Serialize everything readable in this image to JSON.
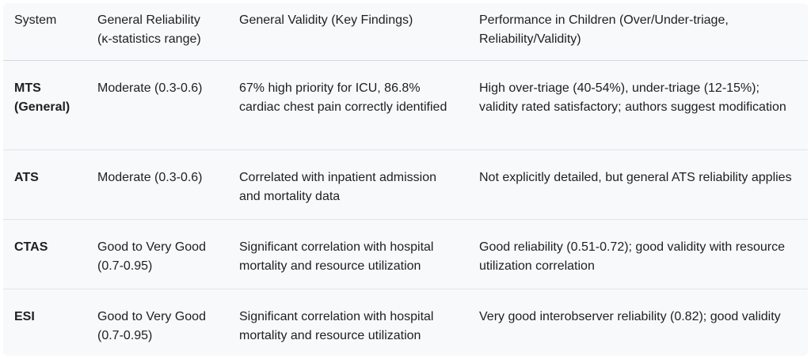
{
  "table": {
    "headers": [
      "System",
      "General Reliability (κ-statistics range)",
      "General Validity (Key Findings)",
      "Performance in Children (Over/Under-triage, Reliability/Validity)"
    ],
    "rows": [
      {
        "system": "MTS (General)",
        "reliability": "Moderate (0.3-0.6)",
        "validity": "67% high priority for ICU, 86.8% cardiac chest pain correctly identified",
        "children": "High over-triage (40-54%), under-triage (12-15%); validity rated satisfactory; authors suggest modification"
      },
      {
        "system": "ATS",
        "reliability": "Moderate (0.3-0.6)",
        "validity": "Correlated with inpatient admission and mortality data",
        "children": "Not explicitly detailed, but general ATS reliability applies"
      },
      {
        "system": "CTAS",
        "reliability": "Good to Very Good (0.7-0.95)",
        "validity": "Significant correlation with hospital mortality and resource utilization",
        "children": "Good reliability (0.51-0.72); good validity with resource utilization correlation"
      },
      {
        "system": "ESI",
        "reliability": "Good to Very Good (0.7-0.95)",
        "validity": "Significant correlation with hospital mortality and resource utilization",
        "children": "Very good interobserver reliability (0.82); good validity"
      }
    ]
  }
}
